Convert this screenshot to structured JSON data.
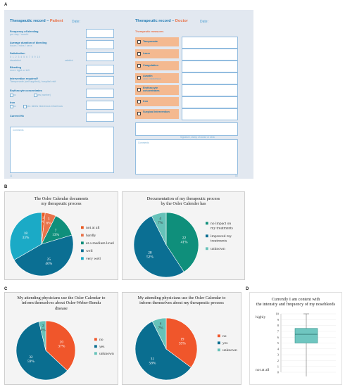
{
  "labels": {
    "A": "A",
    "B": "B",
    "C": "C",
    "D": "D"
  },
  "colors": {
    "not_at_all": "#ea5a22",
    "hardly": "#e8734a",
    "medium": "#0f8f7b",
    "well": "#0b6f93",
    "very_well": "#1baac6",
    "no": "#f0562b",
    "yes": "#0a6e90",
    "unknown": "#66c2b9",
    "box": "#6fc6c0"
  },
  "form": {
    "patient": {
      "title": "Therapeutic record – ",
      "role": "Patient",
      "date": "Date:",
      "fields": [
        {
          "label": "Frequency of bleeding",
          "sub": "per day / month"
        },
        {
          "label": "Average duration of bleeding",
          "sub": "hours / mins / secs"
        },
        {
          "label": "Satisfaction",
          "sub": ""
        },
        {
          "label": "Bleeding",
          "sub": "more right or left"
        },
        {
          "label": "Intervention required?",
          "sub": "Tamponade (self applied), hospital visit"
        },
        {
          "label": "Erythrocyte concentrates",
          "sub": ""
        },
        {
          "label": "Iron",
          "sub": ""
        },
        {
          "label": "Current Hb",
          "sub": ""
        }
      ],
      "scale": "0  1  2  3  4  5  6  7  8  9  10",
      "scale_left": "dissatisfied",
      "scale_right": "satisfied",
      "ery_opt1": "no",
      "ery_opt2": "yes (number)",
      "iron_opt1": "no",
      "iron_opt2": "yes: tablets   intravenous  Intravenous",
      "comments": "Comments",
      "page_left": "11",
      "page_right": "16"
    },
    "doctor": {
      "title": "Therapeutic record – ",
      "role": "Doctor",
      "date": "Date:",
      "measures_title": "Therapeutic measures",
      "measures": [
        {
          "label": "Tamponade",
          "sub": ""
        },
        {
          "label": "Laser",
          "sub": ""
        },
        {
          "label": "Coagulation",
          "sub": ""
        },
        {
          "label": "Avastin",
          "sub": "local / intravenous"
        },
        {
          "label": "Erythrocyte concentrates",
          "sub": ""
        },
        {
          "label": "Iron",
          "sub": ""
        },
        {
          "label": "Surgical intervention",
          "sub": ""
        }
      ],
      "signature": "Signature, stamp of doctor or clinic",
      "comments": "Comments"
    }
  },
  "pie_b1": {
    "title_line1": "The Osler Calendar documents",
    "title_line2": "my therapeutic process",
    "legend": [
      "not at all",
      "hardly",
      "at a medium level",
      "well",
      "very well"
    ],
    "labels_count": [
      "1",
      "3",
      "7",
      "25",
      "18"
    ],
    "labels_pct": [
      "2%",
      "6%",
      "13%",
      "46%",
      "33%"
    ]
  },
  "pie_b2": {
    "title_line1": "Documentation of my therapeutic process",
    "title_line2": "by the Osler Calender has",
    "legend": [
      "no impact on my treatments",
      "improved my treatments",
      "unknown"
    ],
    "labels_count": [
      "22",
      "28",
      "4"
    ],
    "labels_pct": [
      "41%",
      "52%",
      "7%"
    ]
  },
  "pie_c1": {
    "title_line1": "My attending physicians use the Osler Calendar to",
    "title_line2": "inform themselves about Osler-Weber-Rendu",
    "title_line3": "disease",
    "legend": [
      "no",
      "yes",
      "unknown"
    ],
    "labels_count": [
      "20",
      "32",
      "2"
    ],
    "labels_pct": [
      "37%",
      "59%",
      "4%"
    ]
  },
  "pie_c2": {
    "title_line1": "My attending physicians use the Osler Calendar to",
    "title_line2": "inform themselves about my therapeutic process",
    "legend": [
      "no",
      "yes",
      "unknown"
    ],
    "labels_count": [
      "19",
      "31",
      "4"
    ],
    "labels_pct": [
      "35%",
      "58%",
      "7%"
    ]
  },
  "box_d": {
    "title_line1": "Currently I am content with",
    "title_line2": "the intensity and frequency of my nosebleeds",
    "label_top": "highly",
    "label_bottom": "not at all",
    "ticks": [
      "10",
      "9",
      "8",
      "7",
      "6",
      "5",
      "4",
      "3",
      "2",
      "1",
      "0"
    ]
  },
  "chart_data": [
    {
      "type": "pie",
      "categories": [
        "not at all",
        "hardly",
        "at a medium level",
        "well",
        "very well"
      ],
      "values": [
        1,
        3,
        7,
        25,
        18
      ],
      "percent": [
        2,
        6,
        13,
        46,
        33
      ],
      "title": "The Osler Calendar documents my therapeutic process"
    },
    {
      "type": "pie",
      "categories": [
        "no impact on my treatments",
        "improved my treatments",
        "unknown"
      ],
      "values": [
        22,
        28,
        4
      ],
      "percent": [
        41,
        52,
        7
      ],
      "title": "Documentation of my therapeutic process by the Osler Calender has"
    },
    {
      "type": "pie",
      "categories": [
        "no",
        "yes",
        "unknown"
      ],
      "values": [
        20,
        32,
        2
      ],
      "percent": [
        37,
        59,
        4
      ],
      "title": "My attending physicians use the Osler Calendar to inform themselves about Osler-Weber-Rendu disease"
    },
    {
      "type": "pie",
      "categories": [
        "no",
        "yes",
        "unknown"
      ],
      "values": [
        19,
        31,
        4
      ],
      "percent": [
        35,
        58,
        7
      ],
      "title": "My attending physicians use the Osler Calendar to inform themselves about my therapeutic process"
    },
    {
      "type": "box",
      "title": "Currently I am content with the intensity and frequency of my nosebleeds",
      "ylim": [
        0,
        10
      ],
      "min": 0,
      "q1": 5,
      "median": 6.5,
      "q3": 7.5,
      "max": 10
    }
  ]
}
